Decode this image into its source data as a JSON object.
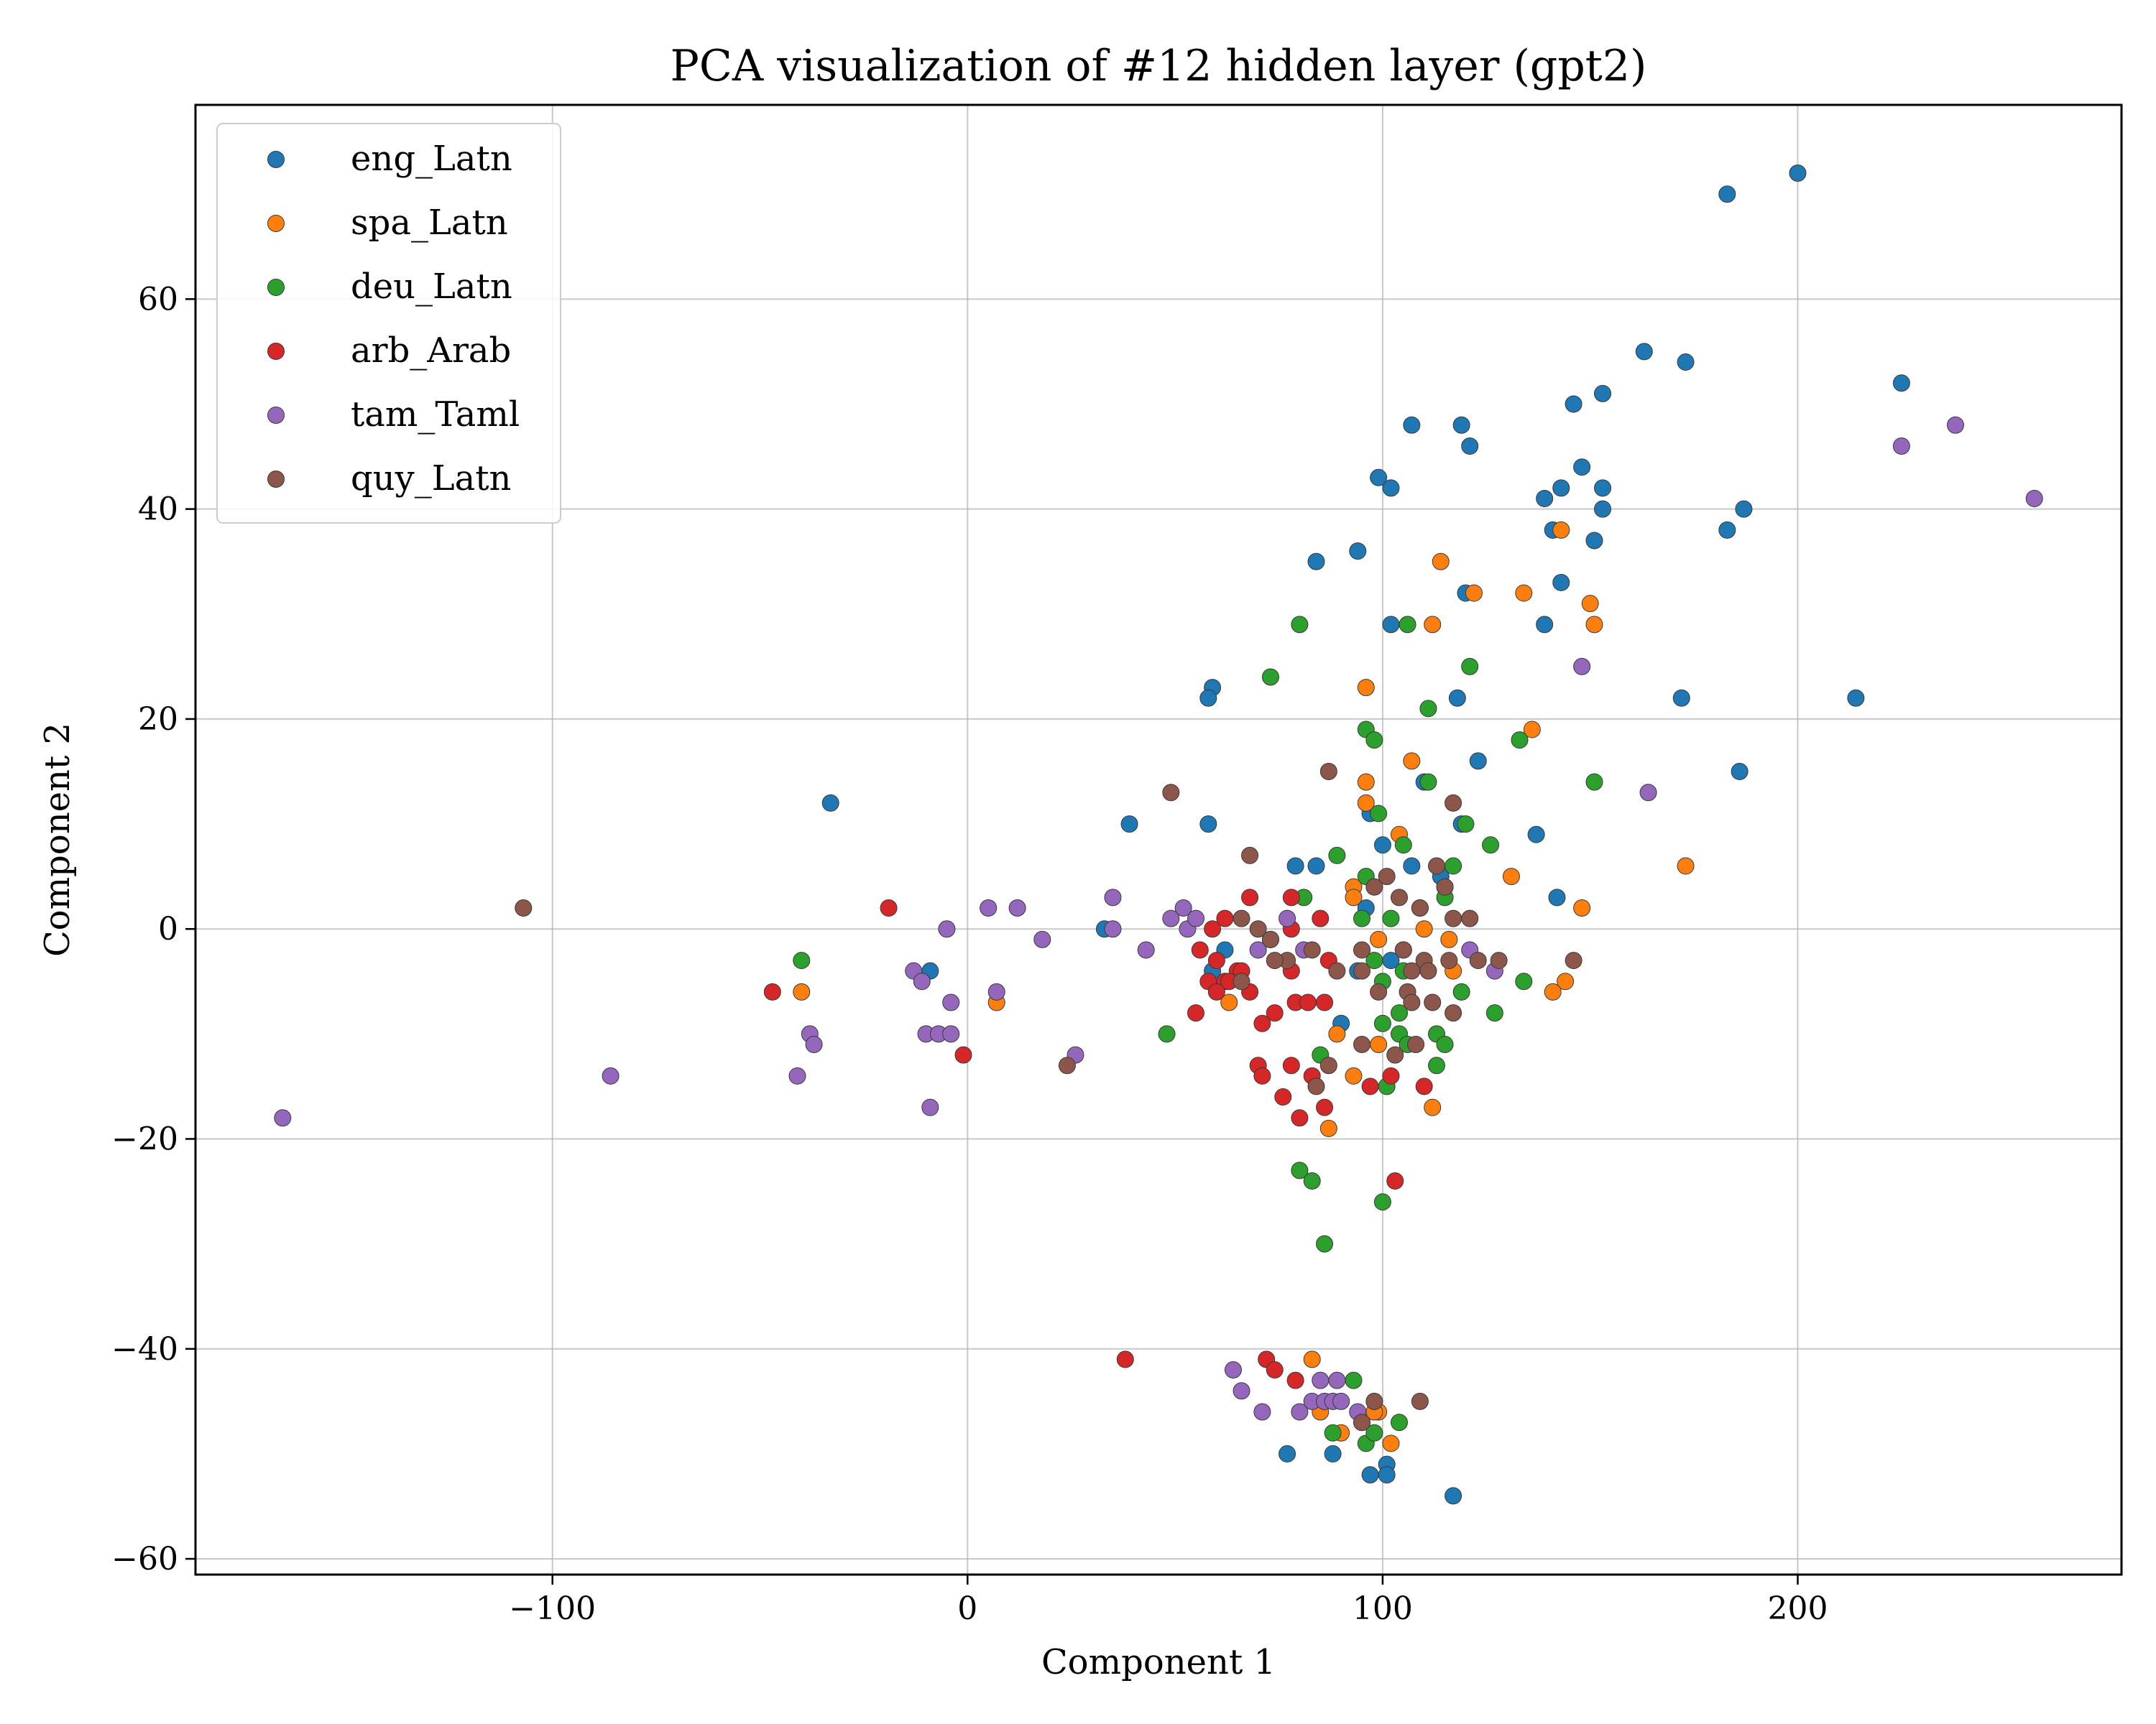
{
  "chart_data": {
    "type": "scatter",
    "title": "PCA visualization of #12 hidden layer (gpt2)",
    "xlabel": "Component 1",
    "ylabel": "Component 2",
    "xlim": [
      -186,
      278
    ],
    "ylim": [
      -61.5,
      78.5
    ],
    "xticks": [
      -100,
      0,
      100,
      200
    ],
    "yticks": [
      -60,
      -40,
      -20,
      0,
      20,
      40,
      60
    ],
    "xtick_labels": [
      "−100",
      "0",
      "100",
      "200"
    ],
    "ytick_labels": [
      "−60",
      "−40",
      "−20",
      "0",
      "20",
      "40",
      "60"
    ],
    "grid": true,
    "legend_position": "upper-left",
    "series": [
      {
        "name": "eng_Latn",
        "color": "#1f77b4",
        "points": [
          [
            200,
            72
          ],
          [
            183,
            70
          ],
          [
            163,
            55
          ],
          [
            173,
            54
          ],
          [
            225,
            52
          ],
          [
            153,
            51
          ],
          [
            146,
            50
          ],
          [
            107,
            48
          ],
          [
            119,
            48
          ],
          [
            121,
            46
          ],
          [
            148,
            44
          ],
          [
            99,
            43
          ],
          [
            143,
            42
          ],
          [
            153,
            42
          ],
          [
            102,
            42
          ],
          [
            139,
            41
          ],
          [
            187,
            40
          ],
          [
            153,
            40
          ],
          [
            141,
            38
          ],
          [
            183,
            38
          ],
          [
            151,
            37
          ],
          [
            94,
            36
          ],
          [
            84,
            35
          ],
          [
            143,
            33
          ],
          [
            120,
            32
          ],
          [
            102,
            29
          ],
          [
            139,
            29
          ],
          [
            59,
            23
          ],
          [
            58,
            22
          ],
          [
            118,
            22
          ],
          [
            172,
            22
          ],
          [
            214,
            22
          ],
          [
            123,
            16
          ],
          [
            186,
            15
          ],
          [
            110,
            14
          ],
          [
            -33,
            12
          ],
          [
            39,
            10
          ],
          [
            58,
            10
          ],
          [
            119,
            10
          ],
          [
            137,
            9
          ],
          [
            100,
            8
          ],
          [
            97,
            11
          ],
          [
            79,
            6
          ],
          [
            84,
            6
          ],
          [
            107,
            6
          ],
          [
            114,
            5
          ],
          [
            33,
            0
          ],
          [
            62,
            -2
          ],
          [
            -9,
            -4
          ],
          [
            59,
            -4
          ],
          [
            142,
            3
          ],
          [
            96,
            2
          ],
          [
            115,
            4
          ],
          [
            90,
            -9
          ],
          [
            94,
            -4
          ],
          [
            102,
            -3
          ],
          [
            77,
            -50
          ],
          [
            88,
            -50
          ],
          [
            97,
            -52
          ],
          [
            101,
            -51
          ],
          [
            101,
            -52
          ],
          [
            117,
            -54
          ]
        ]
      },
      {
        "name": "spa_Latn",
        "color": "#ff7f0e",
        "points": [
          [
            143,
            38
          ],
          [
            114,
            35
          ],
          [
            122,
            32
          ],
          [
            134,
            32
          ],
          [
            150,
            31
          ],
          [
            151,
            29
          ],
          [
            112,
            29
          ],
          [
            96,
            23
          ],
          [
            136,
            19
          ],
          [
            107,
            16
          ],
          [
            96,
            14
          ],
          [
            96,
            12
          ],
          [
            104,
            9
          ],
          [
            173,
            6
          ],
          [
            131,
            5
          ],
          [
            93,
            4
          ],
          [
            148,
            2
          ],
          [
            93,
            3
          ],
          [
            109,
            2
          ],
          [
            99,
            -1
          ],
          [
            116,
            -1
          ],
          [
            110,
            0
          ],
          [
            144,
            -5
          ],
          [
            117,
            -4
          ],
          [
            141,
            -6
          ],
          [
            -40,
            -6
          ],
          [
            7,
            -7
          ],
          [
            63,
            -7
          ],
          [
            89,
            -10
          ],
          [
            99,
            -11
          ],
          [
            93,
            -14
          ],
          [
            112,
            -17
          ],
          [
            87,
            -19
          ],
          [
            83,
            -41
          ],
          [
            85,
            -46
          ],
          [
            90,
            -48
          ],
          [
            95,
            -47
          ],
          [
            99,
            -46
          ],
          [
            102,
            -49
          ],
          [
            98,
            -46
          ]
        ]
      },
      {
        "name": "deu_Latn",
        "color": "#2ca02c",
        "points": [
          [
            80,
            29
          ],
          [
            106,
            29
          ],
          [
            73,
            24
          ],
          [
            121,
            25
          ],
          [
            111,
            21
          ],
          [
            96,
            19
          ],
          [
            98,
            18
          ],
          [
            133,
            18
          ],
          [
            151,
            14
          ],
          [
            111,
            14
          ],
          [
            99,
            11
          ],
          [
            105,
            8
          ],
          [
            126,
            8
          ],
          [
            120,
            10
          ],
          [
            89,
            7
          ],
          [
            96,
            5
          ],
          [
            117,
            6
          ],
          [
            115,
            3
          ],
          [
            81,
            3
          ],
          [
            102,
            1
          ],
          [
            95,
            1
          ],
          [
            -40,
            -3
          ],
          [
            98,
            -3
          ],
          [
            105,
            -4
          ],
          [
            100,
            -5
          ],
          [
            119,
            -6
          ],
          [
            134,
            -5
          ],
          [
            104,
            -8
          ],
          [
            127,
            -8
          ],
          [
            100,
            -9
          ],
          [
            104,
            -10
          ],
          [
            113,
            -10
          ],
          [
            106,
            -11
          ],
          [
            115,
            -11
          ],
          [
            48,
            -10
          ],
          [
            85,
            -12
          ],
          [
            101,
            -15
          ],
          [
            113,
            -13
          ],
          [
            80,
            -23
          ],
          [
            83,
            -24
          ],
          [
            86,
            -30
          ],
          [
            100,
            -26
          ],
          [
            93,
            -43
          ],
          [
            104,
            -47
          ],
          [
            88,
            -48
          ],
          [
            96,
            -49
          ],
          [
            98,
            -48
          ]
        ]
      },
      {
        "name": "arb_Arab",
        "color": "#d62728",
        "points": [
          [
            -19,
            2
          ],
          [
            59,
            0
          ],
          [
            62,
            1
          ],
          [
            68,
            3
          ],
          [
            78,
            3
          ],
          [
            85,
            1
          ],
          [
            78,
            0
          ],
          [
            56,
            -2
          ],
          [
            60,
            -3
          ],
          [
            65,
            -4
          ],
          [
            58,
            -5
          ],
          [
            62,
            -5
          ],
          [
            66,
            -4
          ],
          [
            78,
            -4
          ],
          [
            87,
            -3
          ],
          [
            60,
            -6
          ],
          [
            63,
            -5
          ],
          [
            68,
            -6
          ],
          [
            79,
            -7
          ],
          [
            82,
            -7
          ],
          [
            86,
            -7
          ],
          [
            74,
            -8
          ],
          [
            55,
            -8
          ],
          [
            71,
            -9
          ],
          [
            -47,
            -6
          ],
          [
            -1,
            -12
          ],
          [
            70,
            -13
          ],
          [
            71,
            -14
          ],
          [
            78,
            -13
          ],
          [
            76,
            -16
          ],
          [
            80,
            -18
          ],
          [
            86,
            -17
          ],
          [
            83,
            -14
          ],
          [
            97,
            -15
          ],
          [
            102,
            -14
          ],
          [
            110,
            -15
          ],
          [
            38,
            -41
          ],
          [
            72,
            -41
          ],
          [
            74,
            -42
          ],
          [
            79,
            -43
          ],
          [
            103,
            -24
          ]
        ]
      },
      {
        "name": "tam_Taml",
        "color": "#9467bd",
        "points": [
          [
            257,
            41
          ],
          [
            238,
            48
          ],
          [
            225,
            46
          ],
          [
            148,
            25
          ],
          [
            164,
            13
          ],
          [
            -5,
            0
          ],
          [
            5,
            2
          ],
          [
            12,
            2
          ],
          [
            18,
            -1
          ],
          [
            35,
            3
          ],
          [
            35,
            0
          ],
          [
            43,
            -2
          ],
          [
            49,
            1
          ],
          [
            52,
            2
          ],
          [
            53,
            0
          ],
          [
            55,
            1
          ],
          [
            70,
            -2
          ],
          [
            73,
            -1
          ],
          [
            77,
            1
          ],
          [
            81,
            -2
          ],
          [
            -13,
            -4
          ],
          [
            -11,
            -5
          ],
          [
            -4,
            -7
          ],
          [
            7,
            -6
          ],
          [
            -10,
            -10
          ],
          [
            -7,
            -10
          ],
          [
            -4,
            -10
          ],
          [
            -38,
            -10
          ],
          [
            -37,
            -11
          ],
          [
            26,
            -12
          ],
          [
            -41,
            -14
          ],
          [
            -86,
            -14
          ],
          [
            -9,
            -17
          ],
          [
            -165,
            -18
          ],
          [
            64,
            -42
          ],
          [
            66,
            -44
          ],
          [
            71,
            -46
          ],
          [
            80,
            -46
          ],
          [
            85,
            -43
          ],
          [
            89,
            -43
          ],
          [
            83,
            -45
          ],
          [
            86,
            -45
          ],
          [
            88,
            -45
          ],
          [
            90,
            -45
          ],
          [
            94,
            -46
          ],
          [
            121,
            -2
          ],
          [
            127,
            -4
          ],
          [
            105,
            -2
          ]
        ]
      },
      {
        "name": "quy_Latn",
        "color": "#8c564b",
        "points": [
          [
            -107,
            2
          ],
          [
            49,
            13
          ],
          [
            87,
            15
          ],
          [
            68,
            7
          ],
          [
            117,
            12
          ],
          [
            101,
            5
          ],
          [
            98,
            4
          ],
          [
            104,
            3
          ],
          [
            113,
            6
          ],
          [
            115,
            4
          ],
          [
            109,
            2
          ],
          [
            117,
            1
          ],
          [
            121,
            1
          ],
          [
            66,
            1
          ],
          [
            70,
            0
          ],
          [
            73,
            -1
          ],
          [
            77,
            -3
          ],
          [
            83,
            -2
          ],
          [
            95,
            -2
          ],
          [
            105,
            -2
          ],
          [
            110,
            -3
          ],
          [
            116,
            -3
          ],
          [
            123,
            -3
          ],
          [
            128,
            -3
          ],
          [
            146,
            -3
          ],
          [
            89,
            -4
          ],
          [
            95,
            -4
          ],
          [
            107,
            -4
          ],
          [
            111,
            -4
          ],
          [
            99,
            -6
          ],
          [
            106,
            -6
          ],
          [
            66,
            -5
          ],
          [
            74,
            -3
          ],
          [
            107,
            -7
          ],
          [
            112,
            -7
          ],
          [
            117,
            -8
          ],
          [
            95,
            -11
          ],
          [
            103,
            -12
          ],
          [
            108,
            -11
          ],
          [
            24,
            -13
          ],
          [
            87,
            -13
          ],
          [
            84,
            -15
          ],
          [
            95,
            -47
          ],
          [
            98,
            -45
          ],
          [
            109,
            -45
          ]
        ]
      }
    ]
  }
}
